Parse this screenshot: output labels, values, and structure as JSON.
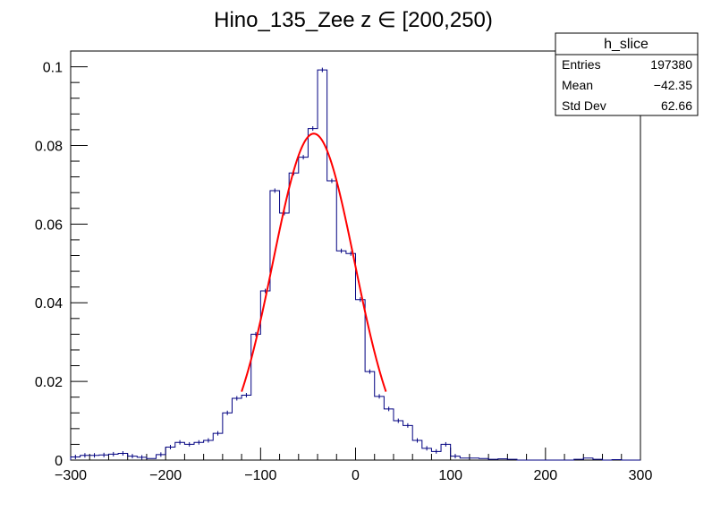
{
  "chart_data": {
    "type": "histogram",
    "title": "Hino_135_Zee z  ∈ [200,250)",
    "xlabel": "",
    "ylabel": "",
    "xlim": [
      -300,
      300
    ],
    "ylim": [
      0,
      0.104
    ],
    "x_ticks": [
      -300,
      -200,
      -100,
      0,
      100,
      200,
      300
    ],
    "x_tick_labels": [
      "−300",
      "−200",
      "−100",
      "0",
      "100",
      "200",
      "300"
    ],
    "y_ticks": [
      0,
      0.02,
      0.04,
      0.06,
      0.08,
      0.1
    ],
    "y_tick_labels": [
      "0",
      "0.02",
      "0.04",
      "0.06",
      "0.08",
      "0.1"
    ],
    "bin_width": 10,
    "bin_edges_start": -300,
    "histogram_color": "#000080",
    "fit_color": "#ff0000",
    "values": [
      0.0008,
      0.0012,
      0.0012,
      0.0013,
      0.0015,
      0.0017,
      0.001,
      0.0007,
      0.0004,
      0.0014,
      0.0033,
      0.0045,
      0.004,
      0.0045,
      0.005,
      0.0068,
      0.012,
      0.0157,
      0.0165,
      0.032,
      0.043,
      0.0685,
      0.0628,
      0.073,
      0.077,
      0.0843,
      0.0992,
      0.071,
      0.0532,
      0.0525,
      0.0408,
      0.0225,
      0.0162,
      0.013,
      0.01,
      0.0088,
      0.005,
      0.003,
      0.0022,
      0.004,
      0.001,
      0.0005,
      0.0005,
      0.0004,
      0.0002,
      0.0003,
      0.0002,
      0.0,
      0.0,
      0.0,
      0.0,
      0.0,
      0.0,
      0.0002,
      0.0005,
      0.0002,
      0.0,
      0.0001,
      0.0,
      0.0
    ],
    "fit": {
      "function": "gaus",
      "amplitude": 0.083,
      "mean": -44,
      "sigma": 43,
      "range": [
        -120,
        32
      ]
    },
    "legend": "top-right",
    "stats_box": {
      "name": "h_slice",
      "rows": [
        {
          "label": "Entries",
          "value": "197380"
        },
        {
          "label": "Mean",
          "value": "−42.35"
        },
        {
          "label": "Std Dev",
          "value": "62.66"
        }
      ]
    }
  }
}
